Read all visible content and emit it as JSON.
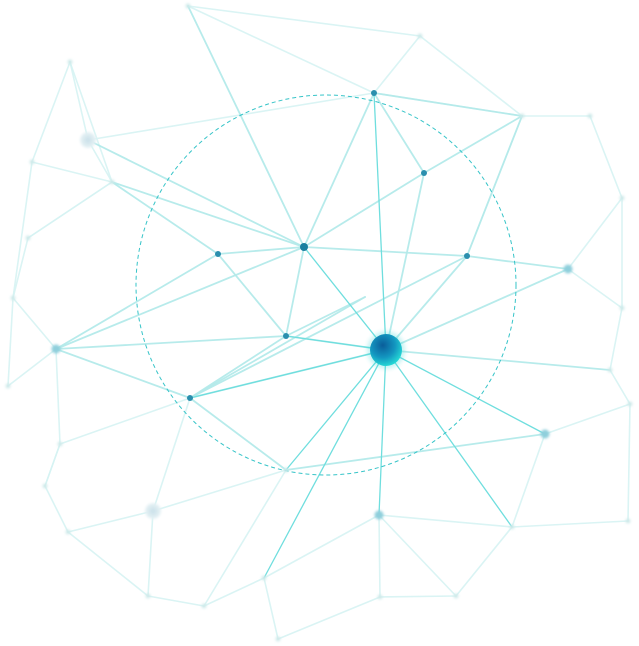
{
  "network": {
    "colors": {
      "background": "#ffffff",
      "edge_faint": "#d6f3f3",
      "edge_light": "#b4eaea",
      "edge_strong": "#6fdede",
      "ring": "#36c4c8",
      "node_faint": "#d0eaea",
      "node_mid": "#8fcfdc",
      "node_dark": "#1a7fa0",
      "hub_inner": "#0f6fa8",
      "hub_outer": "#1fd2d2"
    }
  }
}
